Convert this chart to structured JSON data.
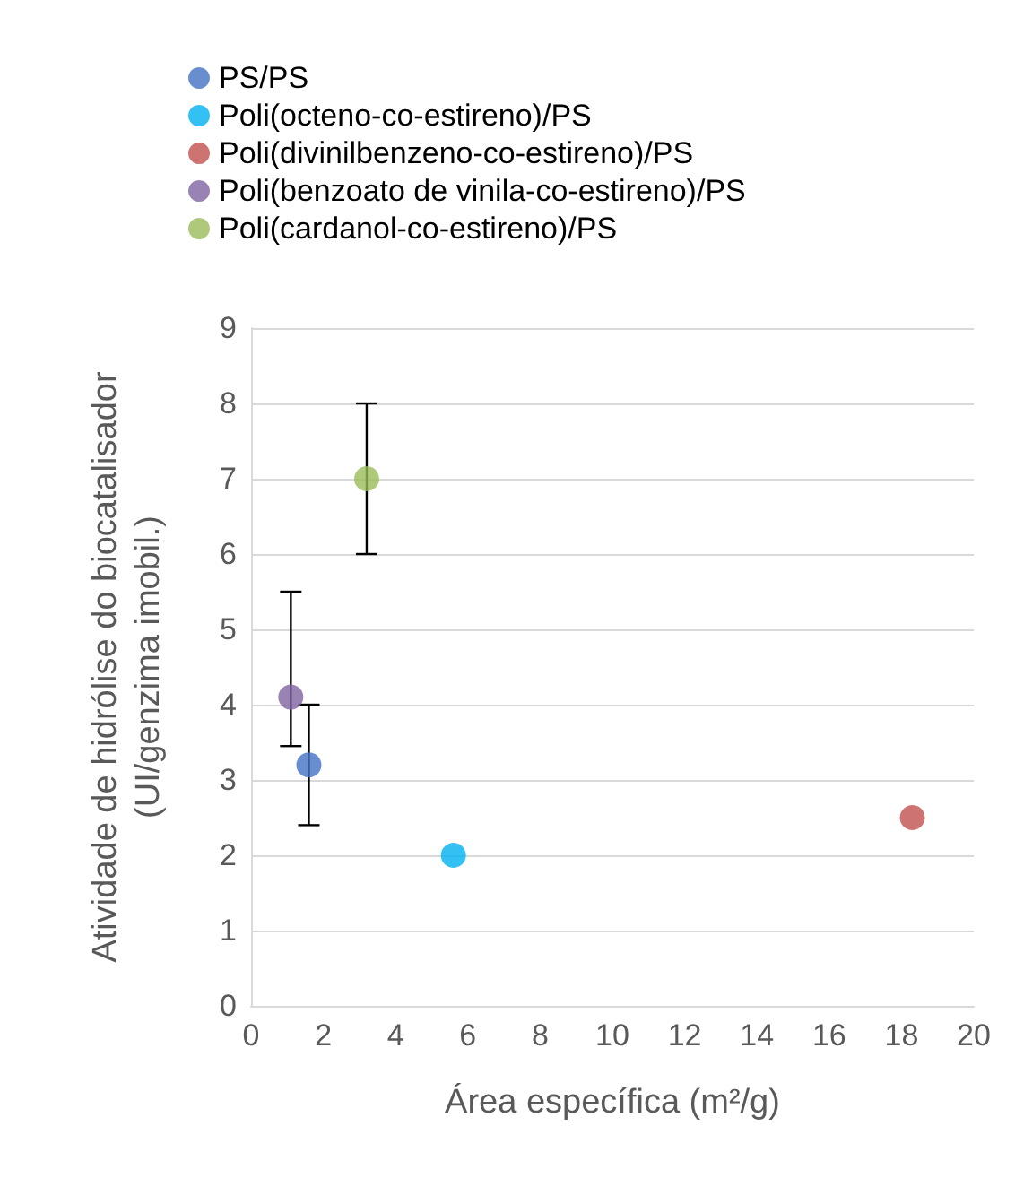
{
  "chart_data": {
    "type": "scatter",
    "xlabel": "Área específica (m²/g)",
    "ylabel": "Atividade de hidrólise do biocatalisador\n(UI/genzima imobil.)",
    "xlim": [
      0,
      20
    ],
    "xticks": [
      0,
      2,
      4,
      6,
      8,
      10,
      12,
      14,
      16,
      18,
      20
    ],
    "ylim": [
      0,
      9
    ],
    "yticks": [
      0,
      1,
      2,
      3,
      4,
      5,
      6,
      7,
      8,
      9
    ],
    "grid": "y",
    "legend": "top left",
    "marker": "circle",
    "series": [
      {
        "name": "PS/PS",
        "color": "#4472c4",
        "x": [
          1.6
        ],
        "values": [
          3.2
        ],
        "errors": [
          [
            2.4,
            4.0
          ]
        ]
      },
      {
        "name": "Poli(octeno-co-estireno)/PS",
        "color": "#00b0f0",
        "x": [
          5.6
        ],
        "values": [
          2.0
        ]
      },
      {
        "name": "Poli(divinilbenzeno-co-estireno)/PS",
        "color": "#c0504d",
        "x": [
          18.3
        ],
        "values": [
          2.5
        ]
      },
      {
        "name": "Poli(benzoato de vinila-co-estireno)/PS",
        "color": "#8064a2",
        "x": [
          1.1
        ],
        "values": [
          4.1
        ],
        "errors": [
          [
            3.45,
            5.5
          ]
        ]
      },
      {
        "name": "Poli(cardanol-co-estireno)/PS",
        "color": "#9bbb59",
        "x": [
          3.2
        ],
        "values": [
          7.0
        ],
        "errors": [
          [
            6.0,
            8.0
          ]
        ]
      }
    ]
  }
}
